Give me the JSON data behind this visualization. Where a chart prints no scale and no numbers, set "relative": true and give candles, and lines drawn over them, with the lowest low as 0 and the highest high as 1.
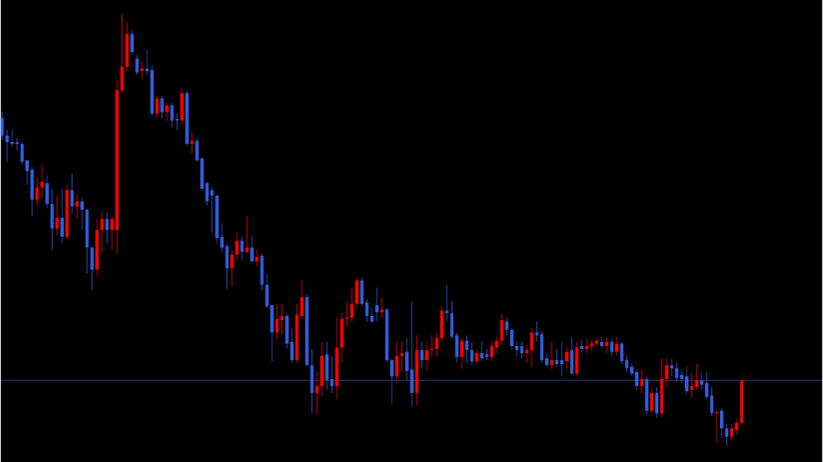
{
  "chart_data": {
    "type": "candlestick",
    "relative": true,
    "categories": [
      null,
      null,
      null,
      null,
      null,
      null,
      null,
      null,
      null,
      null,
      null,
      null,
      null,
      null,
      null,
      null,
      null,
      null,
      null,
      null,
      null,
      null,
      null,
      null,
      null,
      null,
      null,
      null,
      null,
      null,
      null,
      null,
      null,
      null,
      null,
      null,
      null,
      null,
      null,
      null,
      null,
      null,
      null,
      null,
      null,
      null,
      null,
      null,
      null,
      null,
      null,
      null,
      null,
      null,
      null,
      null,
      null,
      null,
      null,
      null,
      null,
      null,
      null,
      null,
      null,
      null,
      null,
      null,
      null,
      null,
      null,
      null,
      null,
      null,
      null,
      null,
      null,
      null,
      null,
      null,
      null,
      null,
      null,
      null,
      null,
      null,
      null,
      null,
      null,
      null,
      null,
      null,
      null,
      null,
      null,
      null,
      null,
      null,
      null,
      null,
      null,
      null,
      null,
      null,
      null,
      null,
      null,
      null,
      null,
      null,
      null,
      null,
      null,
      null,
      null,
      null,
      null,
      null,
      null,
      null,
      null,
      null,
      null,
      null,
      null,
      null,
      null,
      null,
      null,
      null,
      null,
      null,
      null,
      null,
      null,
      null,
      null,
      null,
      null,
      null,
      null,
      null,
      null,
      null,
      null,
      null,
      null,
      null,
      null
    ],
    "ohlc": [
      [
        0.759,
        0.772,
        0.709,
        0.718
      ],
      [
        0.718,
        0.731,
        0.658,
        0.703
      ],
      [
        0.703,
        0.731,
        0.693,
        0.699
      ],
      [
        0.703,
        0.712,
        0.684,
        0.699
      ],
      [
        0.699,
        0.703,
        0.652,
        0.658
      ],
      [
        0.661,
        0.661,
        0.604,
        0.636
      ],
      [
        0.639,
        0.646,
        0.532,
        0.57
      ],
      [
        0.57,
        0.62,
        0.557,
        0.598
      ],
      [
        0.598,
        0.652,
        0.573,
        0.611
      ],
      [
        0.608,
        0.627,
        0.551,
        0.56
      ],
      [
        0.56,
        0.595,
        0.453,
        0.503
      ],
      [
        0.503,
        0.579,
        0.487,
        0.528
      ],
      [
        0.528,
        0.595,
        0.468,
        0.484
      ],
      [
        0.484,
        0.604,
        0.478,
        0.592
      ],
      [
        0.592,
        0.63,
        0.538,
        0.554
      ],
      [
        0.554,
        0.582,
        0.525,
        0.566
      ],
      [
        0.566,
        0.573,
        0.5,
        0.547
      ],
      [
        0.547,
        0.547,
        0.399,
        0.459
      ],
      [
        0.459,
        0.462,
        0.361,
        0.408
      ],
      [
        0.408,
        0.525,
        0.392,
        0.5
      ],
      [
        0.5,
        0.541,
        0.446,
        0.525
      ],
      [
        0.525,
        0.541,
        0.468,
        0.5
      ],
      [
        0.5,
        0.532,
        0.453,
        0.525
      ],
      [
        0.5,
        0.848,
        0.446,
        0.823
      ],
      [
        0.823,
        1,
        0.816,
        0.877
      ],
      [
        0.877,
        0.981,
        0.867,
        0.953
      ],
      [
        0.953,
        0.962,
        0.905,
        0.911
      ],
      [
        0.896,
        0.905,
        0.858,
        0.864
      ],
      [
        0.867,
        0.889,
        0.848,
        0.873
      ],
      [
        0.873,
        0.918,
        0.858,
        0.867
      ],
      [
        0.87,
        0.88,
        0.763,
        0.769
      ],
      [
        0.769,
        0.81,
        0.759,
        0.804
      ],
      [
        0.804,
        0.81,
        0.759,
        0.772
      ],
      [
        0.772,
        0.794,
        0.753,
        0.788
      ],
      [
        0.788,
        0.794,
        0.737,
        0.753
      ],
      [
        0.756,
        0.769,
        0.731,
        0.753
      ],
      [
        0.753,
        0.829,
        0.741,
        0.816
      ],
      [
        0.816,
        0.823,
        0.693,
        0.699
      ],
      [
        0.699,
        0.725,
        0.677,
        0.706
      ],
      [
        0.706,
        0.712,
        0.658,
        0.661
      ],
      [
        0.665,
        0.668,
        0.589,
        0.595
      ],
      [
        0.608,
        0.611,
        0.557,
        0.566
      ],
      [
        0.592,
        0.598,
        0.494,
        0.579
      ],
      [
        0.579,
        0.582,
        0.468,
        0.481
      ],
      [
        0.484,
        0.516,
        0.449,
        0.459
      ],
      [
        0.462,
        0.468,
        0.364,
        0.411
      ],
      [
        0.411,
        0.453,
        0.37,
        0.443
      ],
      [
        0.443,
        0.494,
        0.43,
        0.475
      ],
      [
        0.475,
        0.484,
        0.43,
        0.449
      ],
      [
        0.449,
        0.532,
        0.446,
        0.459
      ],
      [
        0.459,
        0.487,
        0.424,
        0.427
      ],
      [
        0.427,
        0.453,
        0.415,
        0.437
      ],
      [
        0.44,
        0.446,
        0.361,
        0.373
      ],
      [
        0.373,
        0.399,
        0.32,
        0.323
      ],
      [
        0.326,
        0.326,
        0.196,
        0.263
      ],
      [
        0.263,
        0.329,
        0.247,
        0.294
      ],
      [
        0.291,
        0.329,
        0.256,
        0.301
      ],
      [
        0.301,
        0.307,
        0.225,
        0.237
      ],
      [
        0.241,
        0.272,
        0.193,
        0.199
      ],
      [
        0.199,
        0.329,
        0.193,
        0.304
      ],
      [
        0.301,
        0.383,
        0.294,
        0.345
      ],
      [
        0.345,
        0.351,
        0.184,
        0.187
      ],
      [
        0.187,
        0.225,
        0.076,
        0.123
      ],
      [
        0.123,
        0.171,
        0.073,
        0.139
      ],
      [
        0.139,
        0.241,
        0.114,
        0.209
      ],
      [
        0.212,
        0.241,
        0.13,
        0.152
      ],
      [
        0.155,
        0.209,
        0.123,
        0.139
      ],
      [
        0.139,
        0.297,
        0.108,
        0.228
      ],
      [
        0.228,
        0.31,
        0.193,
        0.294
      ],
      [
        0.294,
        0.335,
        0.278,
        0.297
      ],
      [
        0.297,
        0.367,
        0.288,
        0.329
      ],
      [
        0.329,
        0.389,
        0.32,
        0.383
      ],
      [
        0.383,
        0.389,
        0.323,
        0.329
      ],
      [
        0.332,
        0.339,
        0.288,
        0.301
      ],
      [
        0.301,
        0.32,
        0.285,
        0.288
      ],
      [
        0.326,
        0.367,
        0.288,
        0.31
      ],
      [
        0.31,
        0.345,
        0.297,
        0.316
      ],
      [
        0.316,
        0.32,
        0.193,
        0.199
      ],
      [
        0.199,
        0.203,
        0.098,
        0.161
      ],
      [
        0.161,
        0.241,
        0.146,
        0.209
      ],
      [
        0.209,
        0.241,
        0.171,
        0.215
      ],
      [
        0.218,
        0.25,
        0.152,
        0.174
      ],
      [
        0.177,
        0.335,
        0.092,
        0.123
      ],
      [
        0.123,
        0.256,
        0.095,
        0.222
      ],
      [
        0.222,
        0.241,
        0.177,
        0.199
      ],
      [
        0.199,
        0.241,
        0.174,
        0.222
      ],
      [
        0.222,
        0.256,
        0.209,
        0.225
      ],
      [
        0.225,
        0.263,
        0.209,
        0.25
      ],
      [
        0.25,
        0.323,
        0.241,
        0.313
      ],
      [
        0.313,
        0.373,
        0.288,
        0.307
      ],
      [
        0.307,
        0.335,
        0.247,
        0.253
      ],
      [
        0.256,
        0.263,
        0.193,
        0.206
      ],
      [
        0.206,
        0.253,
        0.177,
        0.244
      ],
      [
        0.244,
        0.256,
        0.193,
        0.222
      ],
      [
        0.222,
        0.241,
        0.19,
        0.196
      ],
      [
        0.196,
        0.225,
        0.19,
        0.215
      ],
      [
        0.215,
        0.241,
        0.196,
        0.203
      ],
      [
        0.212,
        0.225,
        0.199,
        0.206
      ],
      [
        0.206,
        0.241,
        0.196,
        0.231
      ],
      [
        0.228,
        0.256,
        0.212,
        0.244
      ],
      [
        0.244,
        0.304,
        0.234,
        0.291
      ],
      [
        0.288,
        0.297,
        0.256,
        0.269
      ],
      [
        0.269,
        0.272,
        0.225,
        0.231
      ],
      [
        0.231,
        0.241,
        0.209,
        0.222
      ],
      [
        0.231,
        0.241,
        0.203,
        0.215
      ],
      [
        0.215,
        0.234,
        0.193,
        0.222
      ],
      [
        0.222,
        0.272,
        0.184,
        0.263
      ],
      [
        0.263,
        0.288,
        0.241,
        0.256
      ],
      [
        0.259,
        0.266,
        0.193,
        0.199
      ],
      [
        0.203,
        0.215,
        0.184,
        0.187
      ],
      [
        0.187,
        0.241,
        0.177,
        0.199
      ],
      [
        0.199,
        0.225,
        0.184,
        0.19
      ],
      [
        0.199,
        0.241,
        0.161,
        0.19
      ],
      [
        0.196,
        0.231,
        0.177,
        0.218
      ],
      [
        0.222,
        0.25,
        0.165,
        0.168
      ],
      [
        0.168,
        0.241,
        0.161,
        0.228
      ],
      [
        0.231,
        0.247,
        0.215,
        0.225
      ],
      [
        0.225,
        0.247,
        0.215,
        0.231
      ],
      [
        0.231,
        0.247,
        0.222,
        0.237
      ],
      [
        0.237,
        0.25,
        0.231,
        0.244
      ],
      [
        0.241,
        0.253,
        0.228,
        0.231
      ],
      [
        0.231,
        0.25,
        0.215,
        0.241
      ],
      [
        0.241,
        0.247,
        0.209,
        0.218
      ],
      [
        0.218,
        0.253,
        0.209,
        0.237
      ],
      [
        0.237,
        0.241,
        0.19,
        0.196
      ],
      [
        0.199,
        0.209,
        0.171,
        0.18
      ],
      [
        0.184,
        0.19,
        0.161,
        0.168
      ],
      [
        0.171,
        0.177,
        0.13,
        0.139
      ],
      [
        0.139,
        0.177,
        0.123,
        0.155
      ],
      [
        0.155,
        0.161,
        0.073,
        0.082
      ],
      [
        0.082,
        0.136,
        0.076,
        0.123
      ],
      [
        0.123,
        0.136,
        0.066,
        0.076
      ],
      [
        0.076,
        0.203,
        0.066,
        0.155
      ],
      [
        0.155,
        0.203,
        0.136,
        0.187
      ],
      [
        0.187,
        0.203,
        0.161,
        0.18
      ],
      [
        0.18,
        0.193,
        0.149,
        0.158
      ],
      [
        0.165,
        0.177,
        0.146,
        0.155
      ],
      [
        0.161,
        0.184,
        0.12,
        0.127
      ],
      [
        0.13,
        0.168,
        0.114,
        0.139
      ],
      [
        0.136,
        0.19,
        0.13,
        0.152
      ],
      [
        0.152,
        0.171,
        0.13,
        0.142
      ],
      [
        0.146,
        0.171,
        0.108,
        0.114
      ],
      [
        0.117,
        0.136,
        0.07,
        0.076
      ],
      [
        0.076,
        0.082,
        0.009,
        0.079
      ],
      [
        0.082,
        0.089,
        0.019,
        0.041
      ],
      [
        0.041,
        0.051,
        0,
        0.022
      ],
      [
        0.022,
        0.051,
        0.013,
        0.041
      ],
      [
        0.038,
        0.063,
        0.025,
        0.054
      ],
      [
        0.054,
        0.152,
        0.051,
        0.152
      ]
    ],
    "colors": [
      "#3060e8",
      "#3060e8",
      "#3060e8",
      "#3060e8",
      "#3060e8",
      "#3060e8",
      "#3060e8",
      "#ff0000",
      "#ff0000",
      "#3060e8",
      "#3060e8",
      "#ff0000",
      "#3060e8",
      "#ff0000",
      "#3060e8",
      "#ff0000",
      "#3060e8",
      "#3060e8",
      "#3060e8",
      "#ff0000",
      "#ff0000",
      "#3060e8",
      "#ff0000",
      "#ff0000",
      "#ff0000",
      "#ff0000",
      "#3060e8",
      "#3060e8",
      "#ff0000",
      "#3060e8",
      "#3060e8",
      "#ff0000",
      "#3060e8",
      "#ff0000",
      "#3060e8",
      "#3060e8",
      "#ff0000",
      "#3060e8",
      "#ff0000",
      "#3060e8",
      "#3060e8",
      "#3060e8",
      "#3060e8",
      "#3060e8",
      "#3060e8",
      "#3060e8",
      "#ff0000",
      "#ff0000",
      "#3060e8",
      "#ff0000",
      "#3060e8",
      "#ff0000",
      "#3060e8",
      "#3060e8",
      "#3060e8",
      "#ff0000",
      "#ff0000",
      "#3060e8",
      "#3060e8",
      "#ff0000",
      "#ff0000",
      "#3060e8",
      "#3060e8",
      "#ff0000",
      "#ff0000",
      "#3060e8",
      "#3060e8",
      "#ff0000",
      "#ff0000",
      "#ff0000",
      "#ff0000",
      "#ff0000",
      "#3060e8",
      "#3060e8",
      "#3060e8",
      "#3060e8",
      "#ff0000",
      "#3060e8",
      "#3060e8",
      "#ff0000",
      "#ff0000",
      "#3060e8",
      "#3060e8",
      "#ff0000",
      "#3060e8",
      "#ff0000",
      "#ff0000",
      "#ff0000",
      "#ff0000",
      "#3060e8",
      "#3060e8",
      "#3060e8",
      "#ff0000",
      "#3060e8",
      "#3060e8",
      "#ff0000",
      "#3060e8",
      "#3060e8",
      "#ff0000",
      "#ff0000",
      "#ff0000",
      "#3060e8",
      "#3060e8",
      "#3060e8",
      "#3060e8",
      "#ff0000",
      "#ff0000",
      "#3060e8",
      "#3060e8",
      "#3060e8",
      "#ff0000",
      "#3060e8",
      "#3060e8",
      "#ff0000",
      "#3060e8",
      "#ff0000",
      "#3060e8",
      "#ff0000",
      "#ff0000",
      "#ff0000",
      "#3060e8",
      "#ff0000",
      "#3060e8",
      "#ff0000",
      "#3060e8",
      "#3060e8",
      "#3060e8",
      "#3060e8",
      "#ff0000",
      "#3060e8",
      "#ff0000",
      "#3060e8",
      "#ff0000",
      "#ff0000",
      "#3060e8",
      "#3060e8",
      "#3060e8",
      "#3060e8",
      "#ff0000",
      "#ff0000",
      "#3060e8",
      "#3060e8",
      "#3060e8",
      "#ff0000",
      "#3060e8",
      "#3060e8",
      "#ff0000",
      "#ff0000",
      "#ff0000"
    ],
    "ref_lines": [
      {
        "axis": "y",
        "value": 0.152,
        "color": "#262650"
      }
    ]
  }
}
